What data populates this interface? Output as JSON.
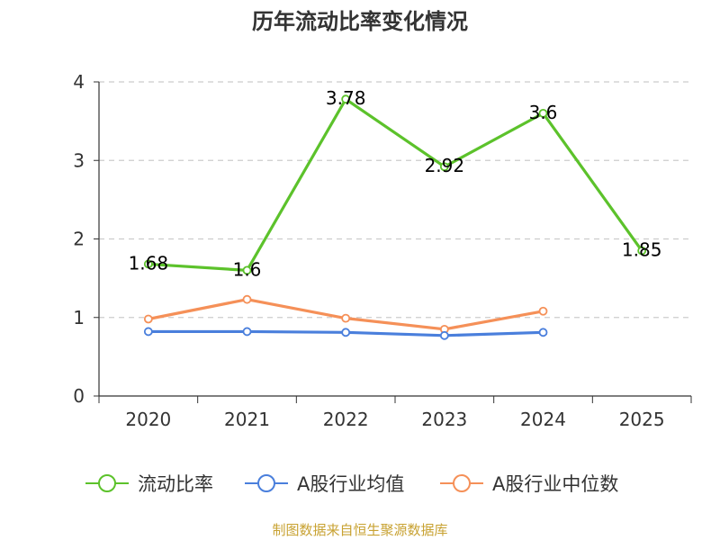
{
  "chart_data": {
    "type": "line",
    "title": "历年流动比率变化情况",
    "categories": [
      "2020",
      "2021",
      "2022",
      "2023",
      "2024",
      "2025"
    ],
    "ylim": [
      0,
      4
    ],
    "yticks": [
      0,
      1,
      2,
      3,
      4
    ],
    "grid": true,
    "legend_position": "bottom",
    "series": [
      {
        "name": "流动比率",
        "color": "#5cc22b",
        "values": [
          1.68,
          1.6,
          3.78,
          2.92,
          3.6,
          1.85
        ],
        "labels": [
          "1.68",
          "1.6",
          "3.78",
          "2.92",
          "3.6",
          "1.85"
        ],
        "show_labels": true
      },
      {
        "name": "A股行业均值",
        "color": "#4a7fdc",
        "values": [
          0.82,
          0.82,
          0.81,
          0.77,
          0.81,
          null
        ],
        "show_labels": false
      },
      {
        "name": "A股行业中位数",
        "color": "#f59058",
        "values": [
          0.98,
          1.23,
          0.99,
          0.85,
          1.08,
          null
        ],
        "show_labels": false
      }
    ],
    "source_note": "制图数据来自恒生聚源数据库"
  }
}
